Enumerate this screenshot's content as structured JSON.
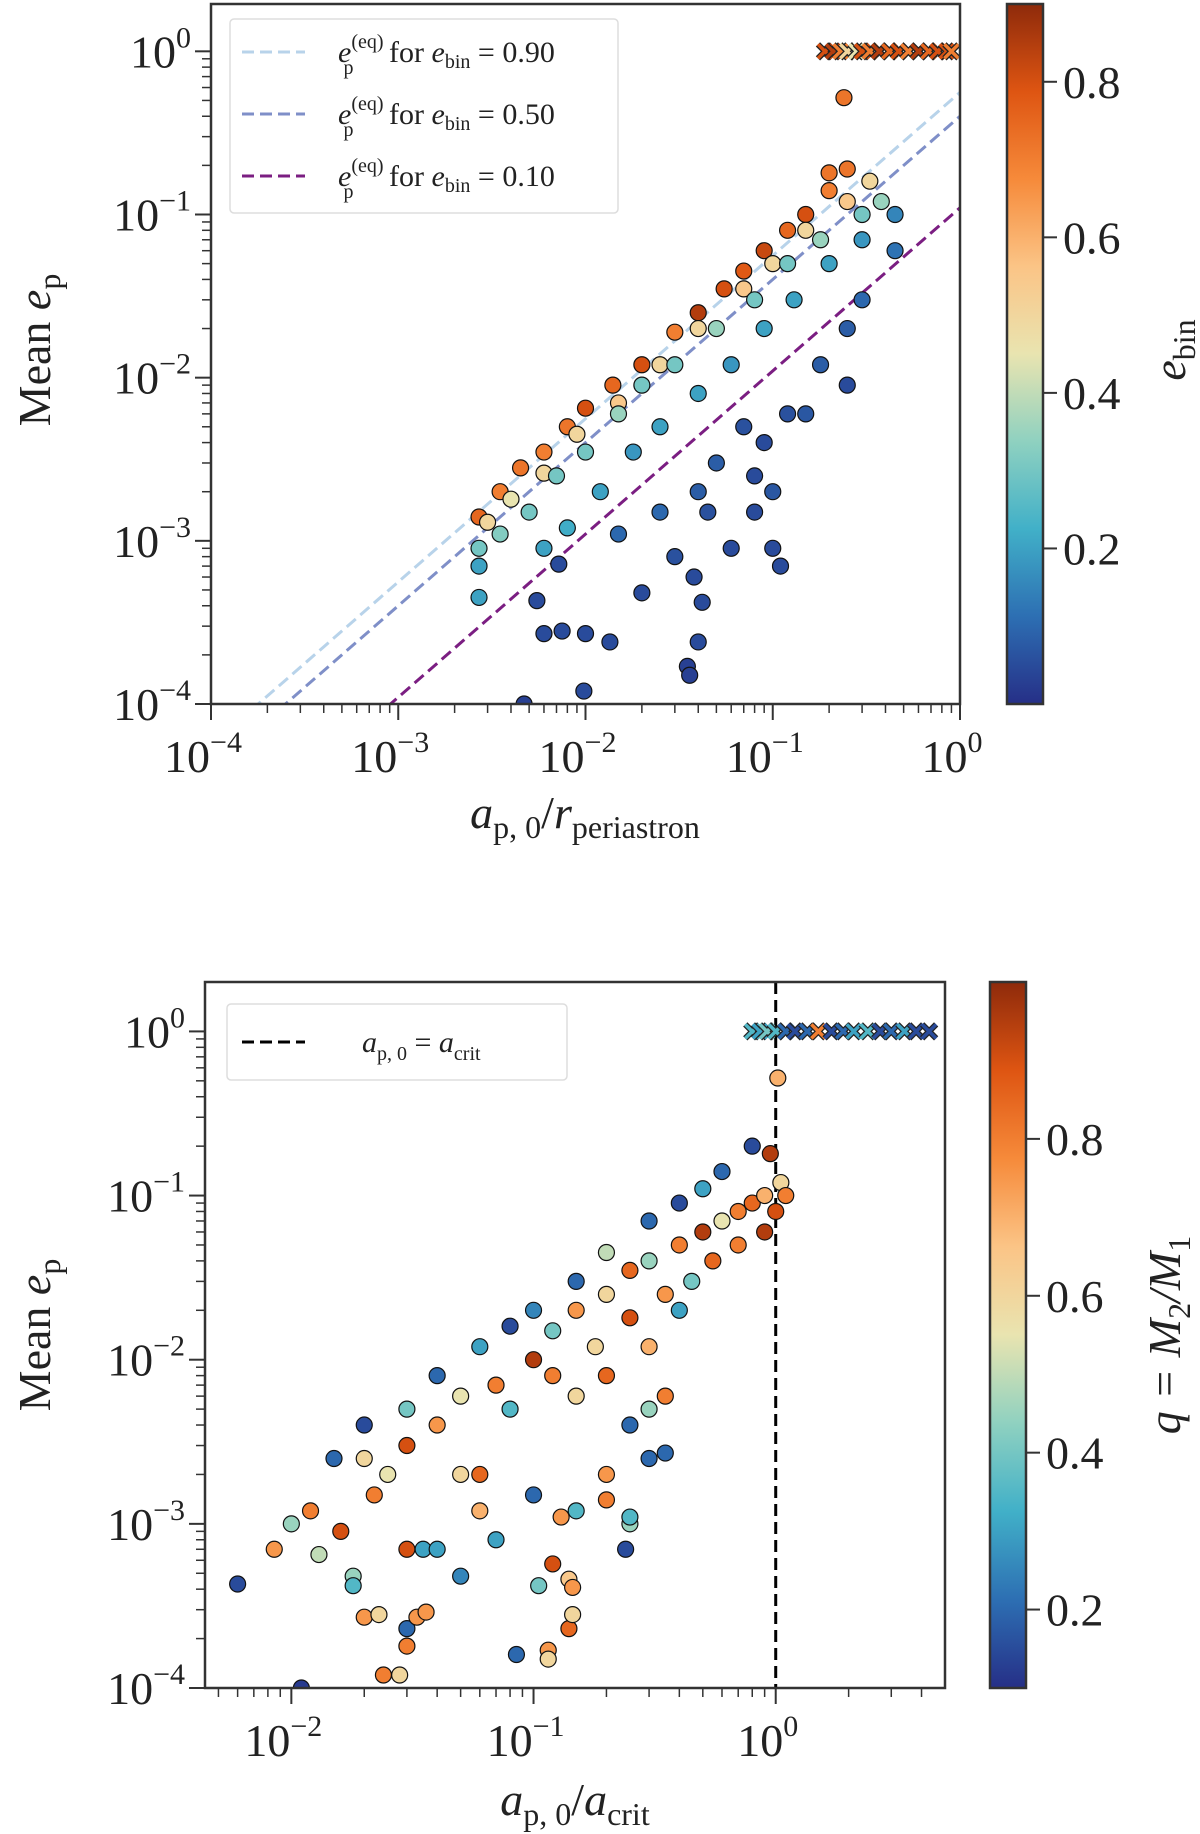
{
  "colormap": [
    "#262f87",
    "#2d6fb3",
    "#41b0c8",
    "#8fd1c0",
    "#e9e4b0",
    "#fbc486",
    "#f68a3a",
    "#de5512",
    "#8e2a0b"
  ],
  "chart_data": [
    {
      "type": "scatter",
      "xlabel": {
        "a": "a",
        "a_sub": "p, 0",
        "slash": "/",
        "r": "r",
        "r_sub": "periastron"
      },
      "ylabel": {
        "mean": "Mean ",
        "e": "e",
        "e_sub": "p"
      },
      "colorbar": {
        "label": "e",
        "label_sub": "bin",
        "range": [
          0.0,
          0.9
        ],
        "ticks": [
          "0.2",
          "0.4",
          "0.6",
          "0.8"
        ]
      },
      "xscale": "log",
      "yscale": "log",
      "xlim": [
        0.0001,
        1
      ],
      "ylim": [
        0.0001,
        1.95
      ],
      "xticks": [
        {
          "base": "10",
          "exp": "−4",
          "v": 0.0001
        },
        {
          "base": "10",
          "exp": "−3",
          "v": 0.001
        },
        {
          "base": "10",
          "exp": "−2",
          "v": 0.01
        },
        {
          "base": "10",
          "exp": "−1",
          "v": 0.1
        },
        {
          "base": "10",
          "exp": "0",
          "v": 1
        }
      ],
      "yticks": [
        {
          "base": "10",
          "exp": "−4",
          "v": 0.0001
        },
        {
          "base": "10",
          "exp": "−3",
          "v": 0.001
        },
        {
          "base": "10",
          "exp": "−2",
          "v": 0.01
        },
        {
          "base": "10",
          "exp": "−1",
          "v": 0.1
        },
        {
          "base": "10",
          "exp": "0",
          "v": 1
        }
      ],
      "legend_position": "top-left",
      "lines": [
        {
          "label": {
            "e": "e",
            "sub": "p",
            "sup": "(eq)",
            "for": " for ",
            "var": "e",
            "var_sub": "bin",
            "val": " = 0.90"
          },
          "coef": 0.56,
          "color": "#b8d3ea"
        },
        {
          "label": {
            "e": "e",
            "sub": "p",
            "sup": "(eq)",
            "for": " for ",
            "var": "e",
            "var_sub": "bin",
            "val": " = 0.50"
          },
          "coef": 0.4,
          "color": "#7f8fc8"
        },
        {
          "label": {
            "e": "e",
            "sub": "p",
            "sup": "(eq)",
            "for": " for ",
            "var": "e",
            "var_sub": "bin",
            "val": " = 0.10"
          },
          "coef": 0.11,
          "color": "#7b1e82"
        }
      ],
      "points": [
        [
          0.0027,
          0.0014,
          0.75
        ],
        [
          0.0035,
          0.002,
          0.7
        ],
        [
          0.0045,
          0.0028,
          0.72
        ],
        [
          0.006,
          0.0035,
          0.7
        ],
        [
          0.008,
          0.005,
          0.72
        ],
        [
          0.01,
          0.0065,
          0.8
        ],
        [
          0.014,
          0.009,
          0.75
        ],
        [
          0.02,
          0.012,
          0.8
        ],
        [
          0.03,
          0.019,
          0.7
        ],
        [
          0.04,
          0.025,
          0.85
        ],
        [
          0.055,
          0.035,
          0.8
        ],
        [
          0.07,
          0.045,
          0.78
        ],
        [
          0.09,
          0.06,
          0.82
        ],
        [
          0.12,
          0.08,
          0.75
        ],
        [
          0.15,
          0.1,
          0.8
        ],
        [
          0.2,
          0.14,
          0.7
        ],
        [
          0.25,
          0.19,
          0.72
        ],
        [
          0.2,
          0.18,
          0.72
        ],
        [
          0.24,
          0.52,
          0.72
        ],
        [
          0.003,
          0.0013,
          0.5
        ],
        [
          0.004,
          0.0018,
          0.45
        ],
        [
          0.006,
          0.0026,
          0.5
        ],
        [
          0.009,
          0.0045,
          0.5
        ],
        [
          0.015,
          0.007,
          0.55
        ],
        [
          0.025,
          0.012,
          0.5
        ],
        [
          0.04,
          0.02,
          0.5
        ],
        [
          0.07,
          0.035,
          0.55
        ],
        [
          0.1,
          0.05,
          0.5
        ],
        [
          0.15,
          0.08,
          0.5
        ],
        [
          0.25,
          0.12,
          0.55
        ],
        [
          0.33,
          0.16,
          0.5
        ],
        [
          0.0027,
          0.0009,
          0.3
        ],
        [
          0.0035,
          0.0011,
          0.32
        ],
        [
          0.005,
          0.0015,
          0.3
        ],
        [
          0.007,
          0.0025,
          0.3
        ],
        [
          0.01,
          0.0035,
          0.3
        ],
        [
          0.015,
          0.006,
          0.35
        ],
        [
          0.02,
          0.009,
          0.3
        ],
        [
          0.03,
          0.012,
          0.3
        ],
        [
          0.05,
          0.02,
          0.35
        ],
        [
          0.08,
          0.03,
          0.3
        ],
        [
          0.12,
          0.05,
          0.3
        ],
        [
          0.18,
          0.07,
          0.35
        ],
        [
          0.3,
          0.1,
          0.3
        ],
        [
          0.38,
          0.12,
          0.35
        ],
        [
          0.0027,
          0.0007,
          0.2
        ],
        [
          0.0027,
          0.00045,
          0.2
        ],
        [
          0.006,
          0.0009,
          0.2
        ],
        [
          0.008,
          0.0012,
          0.22
        ],
        [
          0.012,
          0.002,
          0.2
        ],
        [
          0.018,
          0.0035,
          0.18
        ],
        [
          0.025,
          0.005,
          0.2
        ],
        [
          0.04,
          0.008,
          0.2
        ],
        [
          0.06,
          0.012,
          0.18
        ],
        [
          0.09,
          0.02,
          0.2
        ],
        [
          0.13,
          0.03,
          0.2
        ],
        [
          0.2,
          0.05,
          0.2
        ],
        [
          0.3,
          0.07,
          0.18
        ],
        [
          0.45,
          0.1,
          0.15
        ],
        [
          0.45,
          0.06,
          0.12
        ],
        [
          0.0047,
          0.0001,
          0.03
        ],
        [
          0.0098,
          0.00012,
          0.05
        ],
        [
          0.006,
          0.00027,
          0.05
        ],
        [
          0.0075,
          0.00028,
          0.05
        ],
        [
          0.01,
          0.00027,
          0.05
        ],
        [
          0.0135,
          0.00024,
          0.05
        ],
        [
          0.0055,
          0.00043,
          0.05
        ],
        [
          0.0072,
          0.00072,
          0.05
        ],
        [
          0.02,
          0.00048,
          0.05
        ],
        [
          0.035,
          0.00017,
          0.03
        ],
        [
          0.036,
          0.00015,
          0.03
        ],
        [
          0.04,
          0.00024,
          0.05
        ],
        [
          0.038,
          0.0006,
          0.05
        ],
        [
          0.042,
          0.00042,
          0.05
        ],
        [
          0.03,
          0.0008,
          0.06
        ],
        [
          0.045,
          0.0015,
          0.06
        ],
        [
          0.06,
          0.0009,
          0.05
        ],
        [
          0.08,
          0.0015,
          0.05
        ],
        [
          0.1,
          0.0009,
          0.05
        ],
        [
          0.11,
          0.0007,
          0.05
        ],
        [
          0.05,
          0.003,
          0.08
        ],
        [
          0.07,
          0.005,
          0.06
        ],
        [
          0.09,
          0.004,
          0.05
        ],
        [
          0.12,
          0.006,
          0.06
        ],
        [
          0.15,
          0.006,
          0.07
        ],
        [
          0.18,
          0.012,
          0.08
        ],
        [
          0.25,
          0.02,
          0.08
        ],
        [
          0.25,
          0.009,
          0.05
        ],
        [
          0.3,
          0.03,
          0.1
        ],
        [
          0.1,
          0.002,
          0.07
        ],
        [
          0.08,
          0.0025,
          0.05
        ],
        [
          0.04,
          0.002,
          0.08
        ],
        [
          0.025,
          0.0015,
          0.1
        ],
        [
          0.015,
          0.0011,
          0.1
        ]
      ],
      "x_markers": [
        [
          0.19,
          1,
          0.8
        ],
        [
          0.21,
          1,
          0.85
        ],
        [
          0.23,
          1,
          0.7
        ],
        [
          0.25,
          1,
          0.5
        ],
        [
          0.28,
          1,
          0.45
        ],
        [
          0.3,
          1,
          0.8
        ],
        [
          0.33,
          1,
          0.7
        ],
        [
          0.37,
          1,
          0.85
        ],
        [
          0.42,
          1,
          0.75
        ],
        [
          0.47,
          1,
          0.8
        ],
        [
          0.53,
          1,
          0.7
        ],
        [
          0.6,
          1,
          0.85
        ],
        [
          0.68,
          1,
          0.75
        ],
        [
          0.76,
          1,
          0.8
        ],
        [
          0.85,
          1,
          0.8
        ],
        [
          0.9,
          1,
          0.7
        ]
      ]
    },
    {
      "type": "scatter",
      "xlabel": {
        "a": "a",
        "a_sub": "p, 0",
        "slash": "/",
        "r": "a",
        "r_sub": "crit"
      },
      "ylabel": {
        "mean": "Mean ",
        "e": "e",
        "e_sub": "p"
      },
      "colorbar": {
        "label": "q = M",
        "label_sub": "2",
        "label_rest": "/M",
        "label_sub2": "1",
        "range": [
          0.1,
          1.0
        ],
        "ticks": [
          "0.2",
          "0.4",
          "0.6",
          "0.8"
        ]
      },
      "xscale": "log",
      "yscale": "log",
      "xlim": [
        0.0044,
        5.0
      ],
      "ylim": [
        0.0001,
        2.0
      ],
      "xticks": [
        {
          "base": "10",
          "exp": "−2",
          "v": 0.01
        },
        {
          "base": "10",
          "exp": "−1",
          "v": 0.1
        },
        {
          "base": "10",
          "exp": "0",
          "v": 1
        }
      ],
      "yticks": [
        {
          "base": "10",
          "exp": "−4",
          "v": 0.0001
        },
        {
          "base": "10",
          "exp": "−3",
          "v": 0.001
        },
        {
          "base": "10",
          "exp": "−2",
          "v": 0.01
        },
        {
          "base": "10",
          "exp": "−1",
          "v": 0.1
        },
        {
          "base": "10",
          "exp": "0",
          "v": 1
        }
      ],
      "legend_position": "top-left",
      "vline": {
        "x": 1,
        "color": "#000000",
        "label": {
          "a": "a",
          "a_sub": "p, 0",
          "eq": " = ",
          "b": "a",
          "b_sub": "crit"
        }
      },
      "points": [
        [
          0.015,
          0.0025,
          0.2
        ],
        [
          0.02,
          0.004,
          0.15
        ],
        [
          0.03,
          0.005,
          0.4
        ],
        [
          0.04,
          0.008,
          0.2
        ],
        [
          0.06,
          0.012,
          0.3
        ],
        [
          0.08,
          0.016,
          0.15
        ],
        [
          0.1,
          0.02,
          0.25
        ],
        [
          0.15,
          0.03,
          0.2
        ],
        [
          0.2,
          0.045,
          0.5
        ],
        [
          0.3,
          0.07,
          0.2
        ],
        [
          0.4,
          0.09,
          0.15
        ],
        [
          0.5,
          0.11,
          0.3
        ],
        [
          0.6,
          0.14,
          0.2
        ],
        [
          0.8,
          0.2,
          0.15
        ],
        [
          0.95,
          0.18,
          0.95
        ],
        [
          1.05,
          0.12,
          0.6
        ],
        [
          1.1,
          0.1,
          0.8
        ],
        [
          1.0,
          0.08,
          0.9
        ],
        [
          1.02,
          0.52,
          0.7
        ],
        [
          0.02,
          0.0025,
          0.6
        ],
        [
          0.03,
          0.003,
          0.9
        ],
        [
          0.04,
          0.004,
          0.75
        ],
        [
          0.05,
          0.006,
          0.55
        ],
        [
          0.07,
          0.007,
          0.8
        ],
        [
          0.1,
          0.01,
          0.95
        ],
        [
          0.12,
          0.015,
          0.4
        ],
        [
          0.15,
          0.02,
          0.75
        ],
        [
          0.2,
          0.025,
          0.6
        ],
        [
          0.25,
          0.035,
          0.85
        ],
        [
          0.3,
          0.04,
          0.45
        ],
        [
          0.4,
          0.05,
          0.8
        ],
        [
          0.5,
          0.06,
          0.95
        ],
        [
          0.6,
          0.07,
          0.55
        ],
        [
          0.7,
          0.08,
          0.8
        ],
        [
          0.8,
          0.09,
          0.85
        ],
        [
          0.9,
          0.1,
          0.7
        ],
        [
          0.08,
          0.005,
          0.35
        ],
        [
          0.12,
          0.008,
          0.8
        ],
        [
          0.18,
          0.012,
          0.6
        ],
        [
          0.25,
          0.018,
          0.9
        ],
        [
          0.35,
          0.025,
          0.75
        ],
        [
          0.45,
          0.03,
          0.4
        ],
        [
          0.55,
          0.04,
          0.85
        ],
        [
          0.7,
          0.05,
          0.8
        ],
        [
          0.9,
          0.06,
          0.95
        ],
        [
          0.3,
          0.012,
          0.7
        ],
        [
          0.4,
          0.02,
          0.3
        ],
        [
          0.2,
          0.008,
          0.85
        ],
        [
          0.15,
          0.006,
          0.6
        ],
        [
          0.35,
          0.006,
          0.8
        ],
        [
          0.3,
          0.005,
          0.45
        ],
        [
          0.25,
          0.004,
          0.2
        ],
        [
          0.006,
          0.00043,
          0.15
        ],
        [
          0.011,
          0.0001,
          0.12
        ],
        [
          0.0085,
          0.0007,
          0.75
        ],
        [
          0.01,
          0.001,
          0.45
        ],
        [
          0.012,
          0.0012,
          0.8
        ],
        [
          0.013,
          0.00065,
          0.5
        ],
        [
          0.016,
          0.0009,
          0.9
        ],
        [
          0.018,
          0.00048,
          0.45
        ],
        [
          0.018,
          0.00042,
          0.35
        ],
        [
          0.02,
          0.00027,
          0.75
        ],
        [
          0.023,
          0.00028,
          0.6
        ],
        [
          0.024,
          0.00012,
          0.8
        ],
        [
          0.028,
          0.00012,
          0.6
        ],
        [
          0.03,
          0.00023,
          0.2
        ],
        [
          0.03,
          0.00018,
          0.8
        ],
        [
          0.033,
          0.00027,
          0.75
        ],
        [
          0.036,
          0.00029,
          0.75
        ],
        [
          0.03,
          0.0007,
          0.9
        ],
        [
          0.035,
          0.0007,
          0.3
        ],
        [
          0.04,
          0.0007,
          0.3
        ],
        [
          0.05,
          0.00048,
          0.25
        ],
        [
          0.06,
          0.0012,
          0.7
        ],
        [
          0.07,
          0.0008,
          0.3
        ],
        [
          0.085,
          0.00016,
          0.2
        ],
        [
          0.105,
          0.00042,
          0.4
        ],
        [
          0.115,
          0.00017,
          0.75
        ],
        [
          0.115,
          0.00015,
          0.6
        ],
        [
          0.12,
          0.00057,
          0.9
        ],
        [
          0.14,
          0.00046,
          0.65
        ],
        [
          0.145,
          0.00041,
          0.75
        ],
        [
          0.14,
          0.00023,
          0.85
        ],
        [
          0.145,
          0.00028,
          0.6
        ],
        [
          0.1,
          0.0015,
          0.2
        ],
        [
          0.13,
          0.0011,
          0.75
        ],
        [
          0.15,
          0.0012,
          0.35
        ],
        [
          0.2,
          0.0014,
          0.8
        ],
        [
          0.25,
          0.001,
          0.45
        ],
        [
          0.24,
          0.0007,
          0.15
        ],
        [
          0.25,
          0.0011,
          0.35
        ],
        [
          0.3,
          0.0025,
          0.2
        ],
        [
          0.35,
          0.0027,
          0.2
        ],
        [
          0.2,
          0.002,
          0.75
        ],
        [
          0.022,
          0.0015,
          0.8
        ],
        [
          0.025,
          0.002,
          0.55
        ],
        [
          0.05,
          0.002,
          0.6
        ],
        [
          0.06,
          0.002,
          0.85
        ]
      ],
      "x_markers": [
        [
          0.8,
          1,
          0.35
        ],
        [
          0.86,
          1,
          0.3
        ],
        [
          0.92,
          1,
          0.4
        ],
        [
          1.0,
          1,
          0.35
        ],
        [
          1.1,
          1,
          0.2
        ],
        [
          1.2,
          1,
          0.15
        ],
        [
          1.35,
          1,
          0.2
        ],
        [
          1.5,
          1,
          0.8
        ],
        [
          1.7,
          1,
          0.15
        ],
        [
          1.9,
          1,
          0.2
        ],
        [
          2.1,
          1,
          0.3
        ],
        [
          2.4,
          1,
          0.35
        ],
        [
          2.7,
          1,
          0.15
        ],
        [
          3.0,
          1,
          0.2
        ],
        [
          3.4,
          1,
          0.3
        ],
        [
          3.8,
          1,
          0.15
        ],
        [
          4.3,
          1,
          0.15
        ]
      ]
    }
  ]
}
